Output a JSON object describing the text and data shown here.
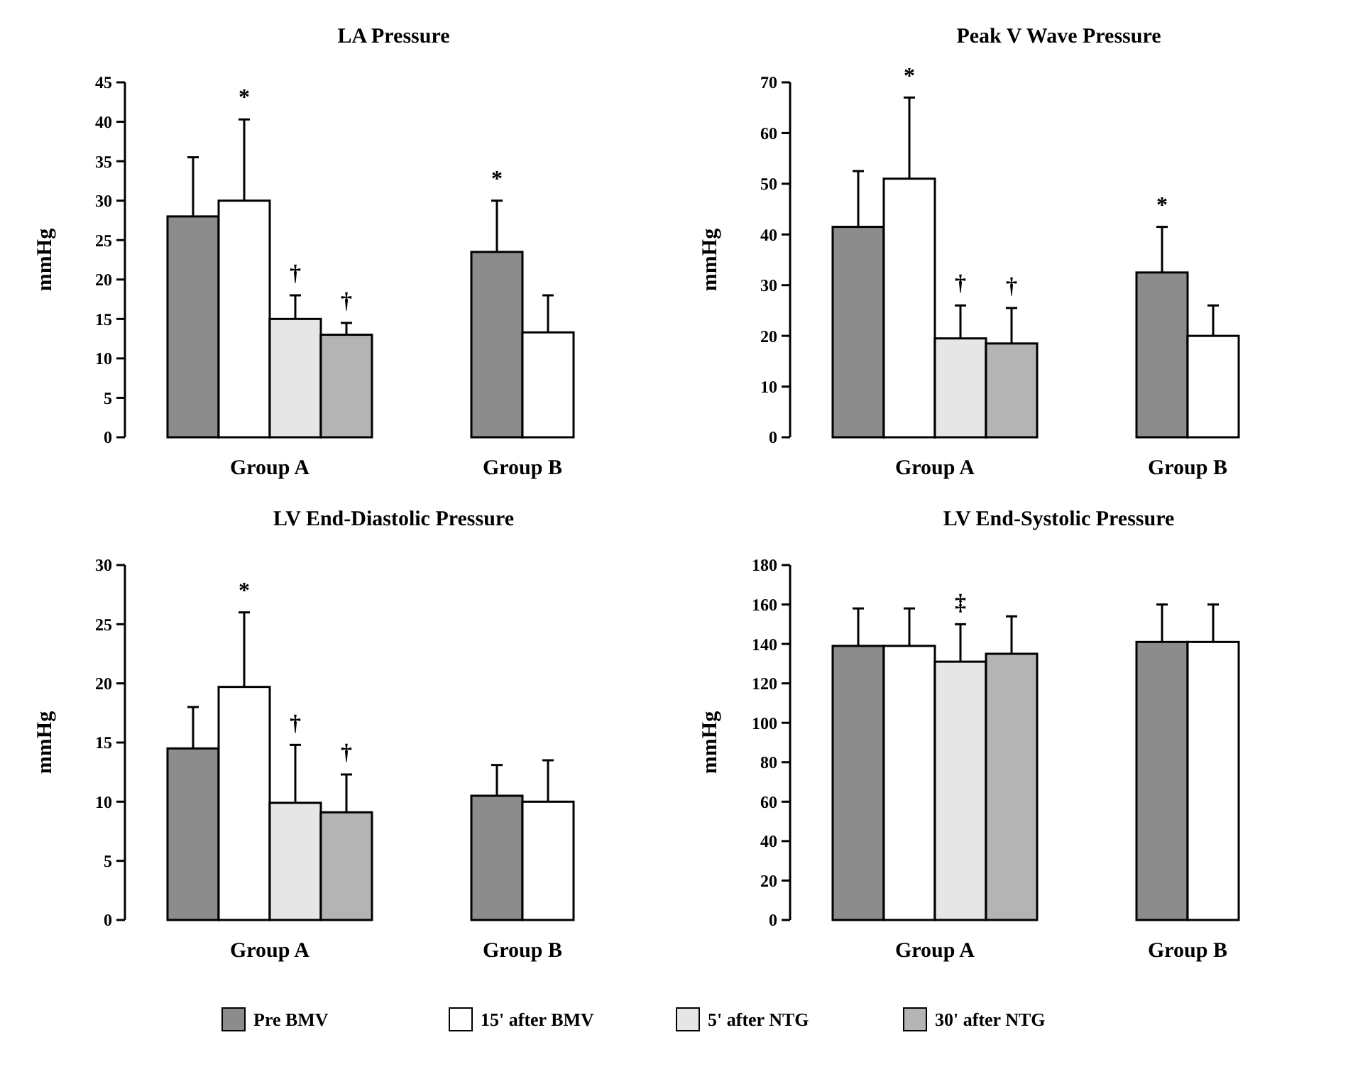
{
  "chart_data": [
    {
      "type": "bar",
      "title": "LA Pressure",
      "ylabel": "mmHg",
      "categories": [
        "Group A",
        "Group B"
      ],
      "ylim": [
        0,
        45
      ],
      "yticks": [
        0,
        5,
        10,
        15,
        20,
        25,
        30,
        35,
        40,
        45
      ],
      "legend": false,
      "series": [
        {
          "color": "#8c8c8c",
          "values": [
            28,
            23.5
          ],
          "errors": [
            [
              28,
              35.5
            ],
            [
              23.5,
              30
            ]
          ]
        },
        {
          "color": "#ffffff",
          "values": [
            30,
            13.3
          ],
          "errors": [
            [
              30,
              40.3
            ],
            [
              13.3,
              18
            ]
          ]
        },
        {
          "color": "#e6e6e6",
          "values": [
            15,
            null
          ],
          "errors": [
            [
              15,
              18
            ],
            null
          ]
        },
        {
          "color": "#b4b4b4",
          "values": [
            13,
            null
          ],
          "errors": [
            [
              13,
              14.5
            ],
            null
          ]
        }
      ],
      "annotations": [
        "*",
        "†",
        "†",
        "*"
      ]
    },
    {
      "type": "bar",
      "title": "Peak V Wave Pressure",
      "ylabel": "mmHg",
      "categories": [
        "Group A",
        "Group B"
      ],
      "ylim": [
        0,
        70
      ],
      "yticks": [
        0,
        10,
        20,
        30,
        40,
        50,
        60,
        70
      ],
      "legend": false,
      "series": [
        {
          "color": "#8c8c8c",
          "values": [
            41.5,
            32.5
          ],
          "errors": [
            [
              41.5,
              52.5
            ],
            [
              32.5,
              41.5
            ]
          ]
        },
        {
          "color": "#ffffff",
          "values": [
            51,
            20
          ],
          "errors": [
            [
              51,
              67
            ],
            [
              20,
              26
            ]
          ]
        },
        {
          "color": "#e6e6e6",
          "values": [
            19.5,
            null
          ],
          "errors": [
            [
              19.5,
              26
            ],
            null
          ]
        },
        {
          "color": "#b4b4b4",
          "values": [
            18.5,
            null
          ],
          "errors": [
            [
              18.5,
              25.5
            ],
            null
          ]
        }
      ],
      "annotations": [
        "*",
        "†",
        "†",
        "*"
      ]
    },
    {
      "type": "bar",
      "title": "LV End-Diastolic Pressure",
      "ylabel": "mmHg",
      "categories": [
        "Group A",
        "Group B"
      ],
      "ylim": [
        0,
        30
      ],
      "yticks": [
        0,
        5,
        10,
        15,
        20,
        25,
        30
      ],
      "legend": false,
      "series": [
        {
          "color": "#8c8c8c",
          "values": [
            14.5,
            10.5
          ],
          "errors": [
            [
              14.5,
              18
            ],
            [
              10.5,
              13.1
            ]
          ]
        },
        {
          "color": "#ffffff",
          "values": [
            19.7,
            10
          ],
          "errors": [
            [
              19.7,
              26
            ],
            [
              10,
              13.5
            ]
          ]
        },
        {
          "color": "#e6e6e6",
          "values": [
            9.9,
            null
          ],
          "errors": [
            [
              9.9,
              14.8
            ],
            null
          ]
        },
        {
          "color": "#b4b4b4",
          "values": [
            9.1,
            null
          ],
          "errors": [
            [
              9.1,
              12.3
            ],
            null
          ]
        }
      ],
      "annotations": [
        "*",
        "†",
        "†"
      ]
    },
    {
      "type": "bar",
      "title": "LV End-Systolic Pressure",
      "ylabel": "mmHg",
      "categories": [
        "Group A",
        "Group B"
      ],
      "ylim": [
        0,
        180
      ],
      "yticks": [
        0,
        20,
        40,
        60,
        80,
        100,
        120,
        140,
        160,
        180
      ],
      "legend": "bottom",
      "series": [
        {
          "name": "Pre BMV",
          "color": "#8c8c8c",
          "values": [
            139,
            141
          ],
          "errors": [
            [
              139,
              158
            ],
            [
              141,
              160
            ]
          ]
        },
        {
          "name": "15' after BMV",
          "color": "#ffffff",
          "values": [
            139,
            141
          ],
          "errors": [
            [
              139,
              158
            ],
            [
              141,
              160
            ]
          ]
        },
        {
          "name": "5' after NTG",
          "color": "#e6e6e6",
          "values": [
            131,
            null
          ],
          "errors": [
            [
              131,
              150
            ],
            null
          ]
        },
        {
          "name": "30' after NTG",
          "color": "#b4b4b4",
          "values": [
            135,
            null
          ],
          "errors": [
            [
              135,
              154
            ],
            null
          ]
        }
      ],
      "annotations": [
        "‡"
      ]
    }
  ]
}
